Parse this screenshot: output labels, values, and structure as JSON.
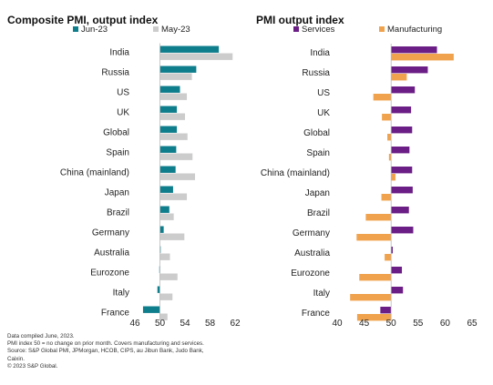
{
  "colors": {
    "jun23": "#0e7d8c",
    "may23": "#cccccc",
    "services": "#6b1f86",
    "manufacturing": "#f0a24c"
  },
  "chart_data": [
    {
      "type": "bar",
      "orientation": "horizontal",
      "title": "Composite PMI, output index",
      "baseline": 50,
      "xlim": [
        46,
        62
      ],
      "xticks": [
        "46",
        "50",
        "54",
        "58",
        "62"
      ],
      "legend_position": "top",
      "categories": [
        "India",
        "Russia",
        "US",
        "UK",
        "Global",
        "Spain",
        "China (mainland)",
        "Japan",
        "Brazil",
        "Germany",
        "Australia",
        "Eurozone",
        "Italy",
        "France"
      ],
      "series": [
        {
          "name": "Jun-23",
          "color_key": "jun23",
          "values": [
            59.4,
            55.8,
            53.2,
            52.7,
            52.7,
            52.6,
            52.5,
            52.1,
            51.5,
            50.6,
            50.1,
            49.9,
            49.6,
            47.3
          ]
        },
        {
          "name": "May-23",
          "color_key": "may23",
          "values": [
            61.6,
            55.1,
            54.3,
            54.0,
            54.4,
            55.2,
            55.6,
            54.3,
            52.2,
            53.9,
            51.6,
            52.8,
            52.0,
            51.2
          ]
        }
      ]
    },
    {
      "type": "bar",
      "orientation": "horizontal",
      "title": "PMI output index",
      "baseline": 50,
      "xlim": [
        40,
        65
      ],
      "xticks": [
        "40",
        "45",
        "50",
        "55",
        "60",
        "65"
      ],
      "legend_position": "top",
      "categories": [
        "India",
        "Russia",
        "US",
        "UK",
        "Global",
        "Spain",
        "China (mainland)",
        "Japan",
        "Brazil",
        "Germany",
        "Australia",
        "Eurozone",
        "Italy",
        "France"
      ],
      "series": [
        {
          "name": "Services",
          "color_key": "services",
          "values": [
            58.5,
            56.8,
            54.4,
            53.7,
            53.9,
            53.4,
            53.9,
            54.0,
            53.3,
            54.1,
            50.3,
            52.0,
            52.2,
            48.0
          ]
        },
        {
          "name": "Manufacturing",
          "color_key": "manufacturing",
          "values": [
            61.6,
            52.9,
            46.7,
            48.3,
            49.3,
            49.6,
            50.8,
            48.2,
            45.3,
            43.6,
            48.8,
            44.1,
            42.4,
            43.7
          ]
        }
      ]
    }
  ],
  "footnotes": [
    "Data compiled June, 2023.",
    "PMI index 50 = no change on prior month. Covers manufacturing and services.",
    "Source: S&P Global PMI, JPMorgan, HCOB, CIPS, au Jibun Bank, Judo Bank,",
    "Caixin.",
    "© 2023 S&P Global."
  ]
}
